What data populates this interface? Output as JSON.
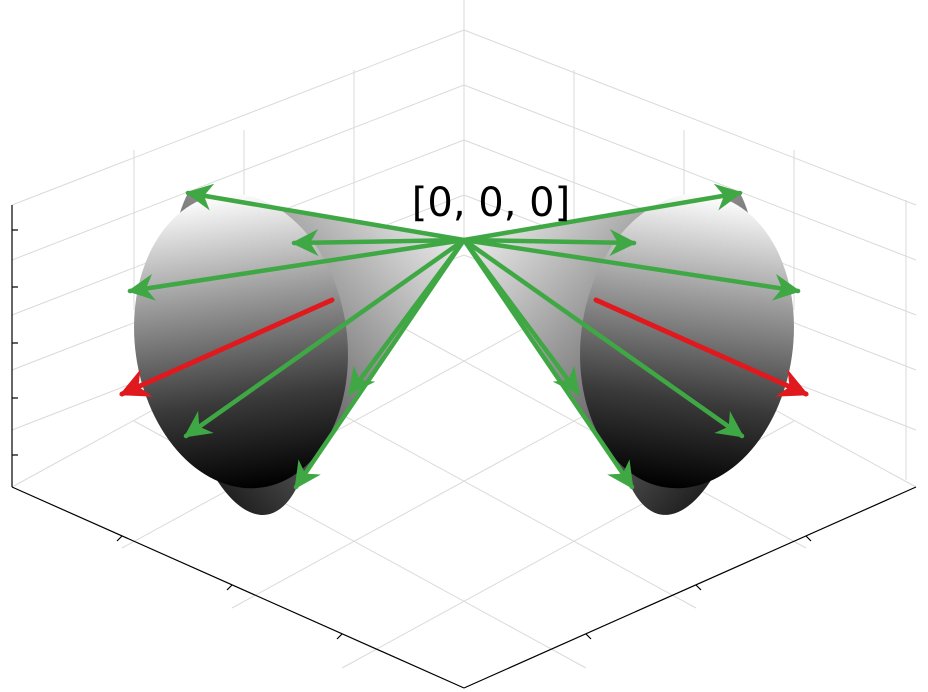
{
  "origin_label": "[0, 0, 0]",
  "colors": {
    "background": "#ffffff",
    "grid": "#dadada",
    "axis": "#000000",
    "cone_light": "#ffffff",
    "cone_dark": "#000000",
    "generator_arrows": "#3fa845",
    "highlight_arrow": "#e0191e"
  },
  "cones": [
    {
      "name": "left-cone",
      "apex": [
        0,
        0,
        0
      ],
      "opens_toward": "left"
    },
    {
      "name": "right-cone",
      "apex": [
        0,
        0,
        0
      ],
      "opens_toward": "right"
    }
  ],
  "arrows": {
    "left_cone_generators": 7,
    "right_cone_generators": 7,
    "highlighted_per_cone": 1
  },
  "axes": {
    "grid": true,
    "tick_labels_shown": false
  }
}
